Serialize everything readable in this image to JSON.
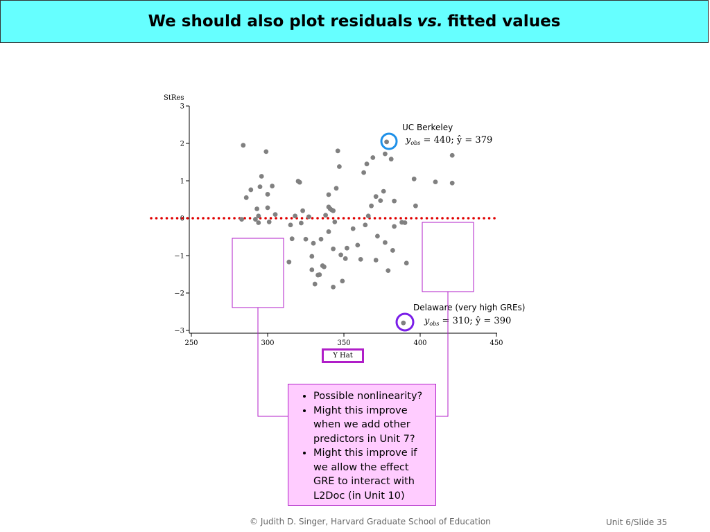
{
  "title": {
    "before": "We should also plot residuals",
    "italic": "vs.",
    "after": "fitted values"
  },
  "chart_data": {
    "type": "scatter",
    "ylabel": "StRes",
    "xlabel": "Y Hat",
    "xlim": [
      250,
      450
    ],
    "ylim": [
      -3,
      3
    ],
    "x_ticks": [
      250,
      300,
      350,
      400,
      450
    ],
    "y_ticks": [
      3,
      2,
      1,
      0,
      -1,
      -2,
      -3
    ],
    "reference_line": {
      "y": 0,
      "style": "dotted",
      "color": "#e00000"
    },
    "point_color": "#808080",
    "points": [
      [
        284,
        1.95
      ],
      [
        286,
        0.55
      ],
      [
        289,
        0.76
      ],
      [
        292,
        -0.03
      ],
      [
        293,
        0.25
      ],
      [
        294,
        0.06
      ],
      [
        295,
        0.84
      ],
      [
        296,
        1.12
      ],
      [
        299,
        1.78
      ],
      [
        300,
        0.64
      ],
      [
        300,
        0.28
      ],
      [
        301,
        -0.1
      ],
      [
        303,
        0.86
      ],
      [
        305,
        0.1
      ],
      [
        283,
        -0.03
      ],
      [
        294,
        -0.12
      ],
      [
        314,
        -1.17
      ],
      [
        315,
        -0.18
      ],
      [
        316,
        -0.55
      ],
      [
        318,
        0.06
      ],
      [
        320,
        0.99
      ],
      [
        321,
        0.96
      ],
      [
        322,
        -0.13
      ],
      [
        323,
        0.2
      ],
      [
        325,
        -0.56
      ],
      [
        327,
        0.04
      ],
      [
        329,
        -1.02
      ],
      [
        329,
        -1.38
      ],
      [
        330,
        -0.67
      ],
      [
        331,
        -1.76
      ],
      [
        333,
        -1.52
      ],
      [
        334,
        -1.51
      ],
      [
        335,
        -0.56
      ],
      [
        336,
        -1.27
      ],
      [
        337,
        -1.3
      ],
      [
        338,
        0.08
      ],
      [
        340,
        -0.36
      ],
      [
        340,
        0.63
      ],
      [
        340,
        0.3
      ],
      [
        341,
        0.25
      ],
      [
        342,
        0.22
      ],
      [
        343,
        0.2
      ],
      [
        344,
        -0.1
      ],
      [
        343,
        -0.82
      ],
      [
        343,
        -1.84
      ],
      [
        345,
        0.8
      ],
      [
        346,
        1.8
      ],
      [
        347,
        1.38
      ],
      [
        348,
        -0.98
      ],
      [
        349,
        -1.68
      ],
      [
        351,
        -1.08
      ],
      [
        352,
        -0.8
      ],
      [
        356,
        -0.28
      ],
      [
        359,
        -0.72
      ],
      [
        361,
        -1.1
      ],
      [
        363,
        1.22
      ],
      [
        364,
        -0.18
      ],
      [
        365,
        1.45
      ],
      [
        366,
        0.06
      ],
      [
        368,
        0.33
      ],
      [
        369,
        1.62
      ],
      [
        371,
        0.58
      ],
      [
        371,
        -1.12
      ],
      [
        372,
        -0.48
      ],
      [
        374,
        0.47
      ],
      [
        376,
        0.72
      ],
      [
        377,
        -0.65
      ],
      [
        377,
        1.72
      ],
      [
        378,
        2.04
      ],
      [
        379,
        -1.4
      ],
      [
        381,
        1.58
      ],
      [
        382,
        -0.86
      ],
      [
        383,
        0.46
      ],
      [
        383,
        -0.22
      ],
      [
        390,
        -0.12
      ],
      [
        391,
        -1.2
      ],
      [
        388,
        -0.11
      ],
      [
        396,
        1.05
      ],
      [
        397,
        0.33
      ],
      [
        410,
        0.97
      ],
      [
        421,
        1.68
      ],
      [
        421,
        0.94
      ],
      [
        389,
        -2.8
      ]
    ],
    "annotations": [
      {
        "label": "UC Berkeley",
        "obs": "440",
        "hat": "379"
      },
      {
        "label": "Delaware (very high GREs)",
        "obs": "310",
        "hat": "390"
      }
    ]
  },
  "callout": {
    "items": [
      "Possible nonlinearity?",
      "Might this improve when we add other predictors in Unit 7?",
      "Might this improve if we allow the effect GRE to interact with L2Doc (in Unit 10)"
    ]
  },
  "footer": {
    "left": "© Judith D. Singer, Harvard Graduate School of Education",
    "right": "Unit 6/Slide 35"
  },
  "colors": {
    "title_bg": "#66ffff",
    "highlight_box": "#b01ec8",
    "berkeley_circle": "#1e90e8",
    "delaware_circle": "#7a1ee8",
    "callout_bg": "#ffccff"
  }
}
